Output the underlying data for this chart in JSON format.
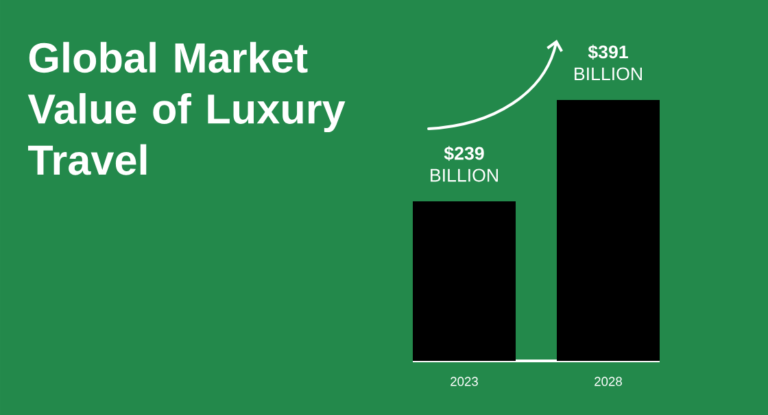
{
  "chart_data": {
    "type": "bar",
    "title": "Global Market Value of Luxury Travel",
    "categories": [
      "2023",
      "2028"
    ],
    "values": [
      239,
      391
    ],
    "color": "#000000",
    "value_labels": [
      "**$239** BILLION",
      "**$391** BILLION"
    ]
  }
}
